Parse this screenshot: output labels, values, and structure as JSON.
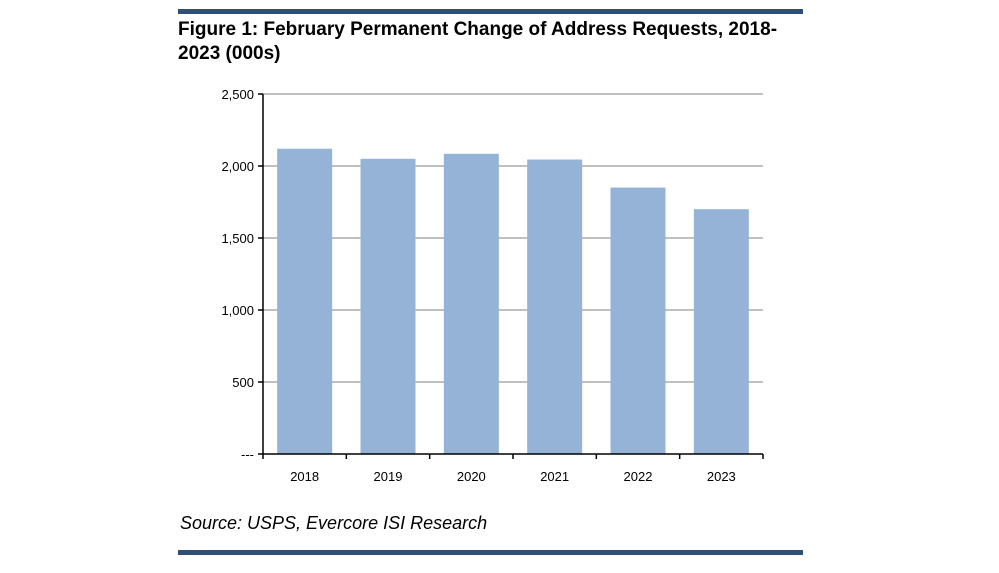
{
  "figure": {
    "title": "Figure 1: February Permanent Change of Address Requests, 2018-2023 (000s)",
    "source": "Source: USPS, Evercore ISI Research"
  },
  "colors": {
    "bar": "#95b3d7",
    "rule": "#2f4f75",
    "grid": "#c0c0c0",
    "axis": "#000000"
  },
  "chart_data": {
    "type": "bar",
    "title": "Figure 1: February Permanent Change of Address Requests, 2018-2023 (000s)",
    "categories": [
      "2018",
      "2019",
      "2020",
      "2021",
      "2022",
      "2023"
    ],
    "values": [
      2120,
      2050,
      2085,
      2045,
      1850,
      1700
    ],
    "ylim": [
      0,
      2500
    ],
    "yticks": [
      0,
      500,
      1000,
      1500,
      2000,
      2500
    ],
    "ytick_labels": [
      "---",
      "500",
      "1,000",
      "1,500",
      "2,000",
      "2,500"
    ],
    "grid": true,
    "xlabel": "",
    "ylabel": ""
  }
}
